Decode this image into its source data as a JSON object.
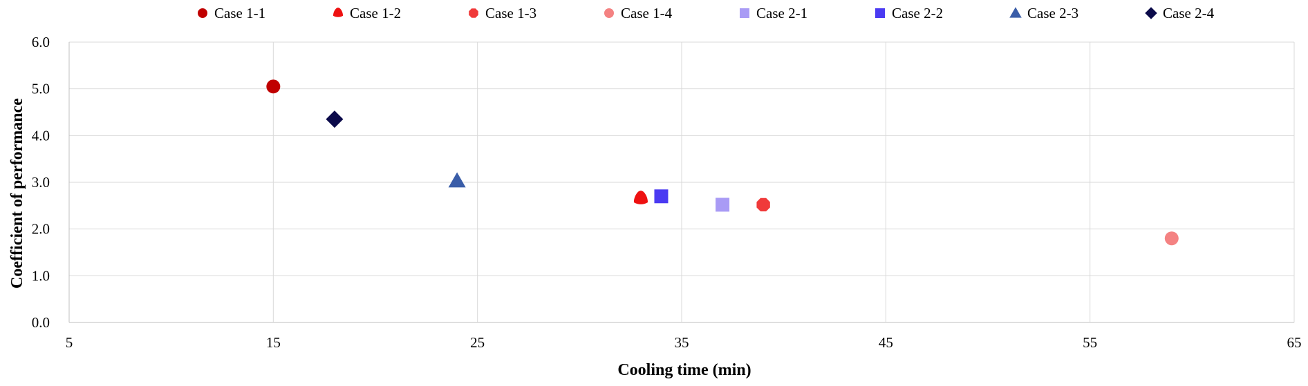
{
  "chart_data": {
    "type": "scatter",
    "title": "",
    "xlabel": "Cooling time (min)",
    "ylabel": "Coefficient of performance",
    "xlim": [
      5,
      65
    ],
    "ylim": [
      0,
      6
    ],
    "xticks": [
      5,
      15,
      25,
      35,
      45,
      55,
      65
    ],
    "xtick_labels": [
      "5",
      "15",
      "25",
      "35",
      "45",
      "55",
      "65"
    ],
    "yticks": [
      0,
      1,
      2,
      3,
      4,
      5,
      6
    ],
    "ytick_labels": [
      "0.0",
      "1.0",
      "2.0",
      "3.0",
      "4.0",
      "5.0",
      "6.0"
    ],
    "grid": true,
    "legend_position": "top",
    "series": [
      {
        "name": "Case 1-1",
        "marker": "circle",
        "color": "#c00000",
        "points": [
          {
            "x": 15.0,
            "y": 5.05
          }
        ]
      },
      {
        "name": "Case 1-2",
        "marker": "dome",
        "color": "#ee1111",
        "points": [
          {
            "x": 33.0,
            "y": 2.65
          }
        ]
      },
      {
        "name": "Case 1-3",
        "marker": "octagon",
        "color": "#f03a3a",
        "points": [
          {
            "x": 39.0,
            "y": 2.52
          }
        ]
      },
      {
        "name": "Case 1-4",
        "marker": "circle",
        "color": "#f48282",
        "points": [
          {
            "x": 59.0,
            "y": 1.8
          }
        ]
      },
      {
        "name": "Case 2-1",
        "marker": "square",
        "color": "#a99bf5",
        "points": [
          {
            "x": 37.0,
            "y": 2.52
          }
        ]
      },
      {
        "name": "Case 2-2",
        "marker": "square",
        "color": "#4a3af2",
        "points": [
          {
            "x": 34.0,
            "y": 2.7
          }
        ]
      },
      {
        "name": "Case 2-3",
        "marker": "triangle",
        "color": "#3a5da8",
        "points": [
          {
            "x": 24.0,
            "y": 3.03
          }
        ]
      },
      {
        "name": "Case 2-4",
        "marker": "diamond",
        "color": "#0b0a4a",
        "points": [
          {
            "x": 18.0,
            "y": 4.35
          }
        ]
      }
    ]
  }
}
